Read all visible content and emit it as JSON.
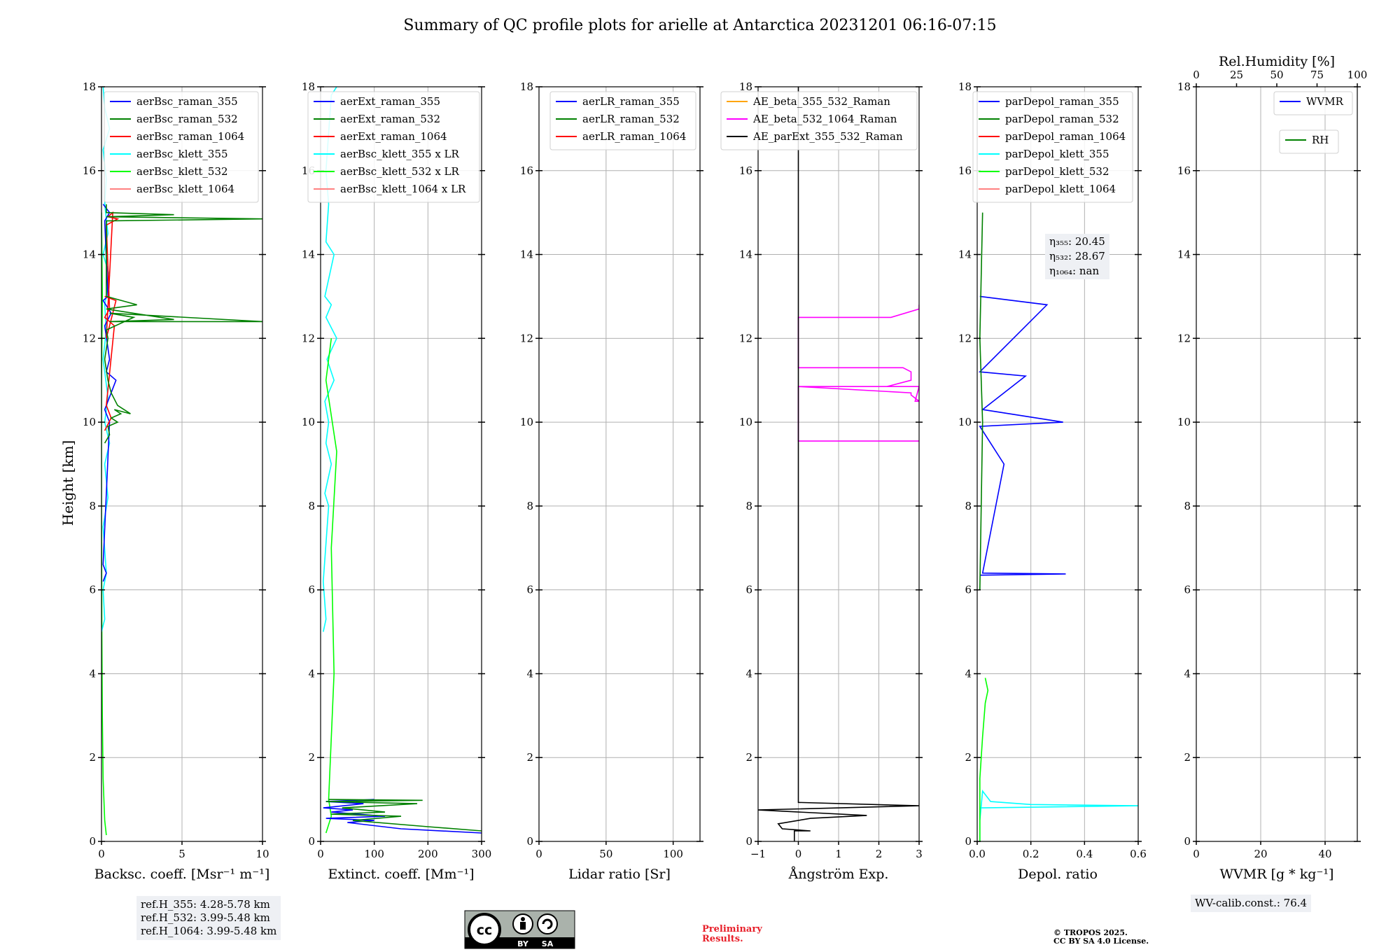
{
  "title": "Summary of QC profile plots for arielle at Antarctica 20231201 06:16-07:15",
  "ylabel": "Height [km]",
  "colors": {
    "blue": "#0000ff",
    "green": "#008000",
    "red": "#ff0000",
    "cyan": "#00ffff",
    "lime": "#00ff00",
    "salmon": "#ff8080",
    "orange": "#ffa500",
    "magenta": "#ff00ff",
    "black": "#000000"
  },
  "chart_data": [
    {
      "id": "bsc",
      "type": "line",
      "xlabel": "Backsc. coeff. [Msr⁻¹ m⁻¹]",
      "xlim": [
        0,
        10
      ],
      "ylim": [
        0,
        18
      ],
      "xticks": [
        0,
        5,
        10
      ],
      "xtick_labels": [
        "0",
        "5",
        "10"
      ],
      "yticks": [
        0,
        2,
        4,
        6,
        8,
        10,
        12,
        14,
        16,
        18
      ],
      "legend": [
        "aerBsc_raman_355",
        "aerBsc_raman_532",
        "aerBsc_raman_1064",
        "aerBsc_klett_355",
        "aerBsc_klett_532",
        "aerBsc_klett_1064"
      ],
      "legend_colors": [
        "blue",
        "green",
        "red",
        "cyan",
        "lime",
        "salmon"
      ],
      "series": [
        {
          "name": "aerBsc_klett_532",
          "color": "lime",
          "x": [
            0.3,
            0.2,
            0.1,
            0.05,
            0.02,
            0.0,
            0.0,
            0.05,
            0.0
          ],
          "y": [
            0.15,
            0.5,
            1.5,
            3,
            5,
            8,
            11,
            13,
            15
          ]
        },
        {
          "name": "aerBsc_klett_355",
          "color": "cyan",
          "x": [
            0.0,
            0.2,
            0.1,
            0.3,
            0.1,
            0.4,
            0.2,
            0.5,
            0.2,
            0.4,
            0.1,
            0.3,
            0.2,
            0.5,
            0.1,
            0.4,
            0.2,
            0.3,
            0.1,
            0.5,
            0.2,
            0.1
          ],
          "y": [
            5,
            5.3,
            6,
            6.4,
            7.5,
            8.2,
            9,
            9.5,
            10,
            10.6,
            11.5,
            12.2,
            12.8,
            13.5,
            14,
            14.5,
            15.2,
            15.8,
            16.5,
            17,
            17.5,
            18
          ]
        },
        {
          "name": "aerBsc_raman_355",
          "color": "blue",
          "x": [
            0.1,
            0.3,
            0.1,
            0.5,
            0.2,
            0.9,
            0.3,
            0.5,
            0.2,
            0.6,
            0.1,
            0.4,
            0.2,
            0.5,
            0.1
          ],
          "y": [
            6.2,
            6.4,
            6.6,
            10.0,
            10.3,
            11.0,
            11.2,
            11.5,
            12.3,
            12.6,
            12.9,
            13.0,
            14.8,
            15.0,
            15.2
          ]
        },
        {
          "name": "aerBsc_raman_1064",
          "color": "red",
          "x": [
            0.2,
            0.6,
            0.3,
            0.8,
            0.2,
            0.5,
            0.3,
            1.0,
            0.4,
            0.7,
            0.3,
            0.9,
            0.2
          ],
          "y": [
            9.8,
            10.1,
            10.4,
            12.3,
            12.5,
            12.7,
            14.7,
            14.85,
            14.9,
            15.0,
            12.0,
            12.9,
            13.0
          ]
        },
        {
          "name": "aerBsc_raman_532",
          "color": "green",
          "x": [
            0.2,
            0.5,
            0.4,
            1.0,
            0.6,
            1.2,
            0.8,
            1.8,
            1.0,
            0.6,
            0.4,
            0.2,
            0.4,
            0.3,
            2.0,
            0.5,
            10.0,
            0.5,
            4.5,
            0.3,
            2.2,
            0.3,
            0.3,
            10.0,
            0.3,
            4.5,
            0.3,
            0.3
          ],
          "y": [
            9.5,
            9.7,
            9.9,
            10.0,
            10.1,
            10.2,
            10.3,
            10.2,
            10.4,
            10.7,
            11.0,
            11.5,
            12.0,
            12.2,
            12.5,
            12.6,
            12.4,
            12.4,
            12.45,
            12.7,
            12.8,
            13.0,
            14.8,
            14.85,
            14.9,
            14.95,
            15.0,
            15.2
          ]
        }
      ],
      "notes": [
        "ref.H_355: 4.28-5.78 km",
        "ref.H_532: 3.99-5.48 km",
        "ref.H_1064: 3.99-5.48 km"
      ]
    },
    {
      "id": "ext",
      "type": "line",
      "xlabel": "Extinct. coeff. [Mm⁻¹]",
      "xlim": [
        0,
        300
      ],
      "ylim": [
        0,
        18
      ],
      "xticks": [
        0,
        100,
        200,
        300
      ],
      "xtick_labels": [
        "0",
        "100",
        "200",
        "300"
      ],
      "yticks": [
        0,
        2,
        4,
        6,
        8,
        10,
        12,
        14,
        16,
        18
      ],
      "legend": [
        "aerExt_raman_355",
        "aerExt_raman_532",
        "aerExt_raman_1064",
        "aerBsc_klett_355 x LR",
        "aerBsc_klett_532 x LR",
        "aerBsc_klett_1064 x LR"
      ],
      "legend_colors": [
        "blue",
        "green",
        "red",
        "cyan",
        "lime",
        "salmon"
      ],
      "series": [
        {
          "name": "aerBsc_klett_355 x LR",
          "color": "cyan",
          "x": [
            5,
            10,
            5,
            15,
            8,
            20,
            10,
            15,
            8,
            25,
            12,
            30,
            10,
            20,
            8,
            25,
            10,
            15,
            10,
            20,
            30
          ],
          "y": [
            5,
            5.3,
            6.2,
            8,
            8.3,
            9,
            9.5,
            10,
            10.5,
            11,
            11.5,
            12,
            12.5,
            12.8,
            13,
            14,
            14.3,
            15.2,
            16,
            17.8,
            18
          ]
        },
        {
          "name": "aerBsc_klett_532 x LR",
          "color": "lime",
          "x": [
            10,
            20,
            15,
            25,
            20,
            30,
            10,
            20
          ],
          "y": [
            0.2,
            0.6,
            1.0,
            4,
            7,
            9.3,
            11,
            12
          ]
        },
        {
          "name": "aerExt_raman_355",
          "color": "blue",
          "x": [
            300,
            150,
            50,
            100,
            10,
            120,
            20,
            60,
            5,
            80,
            10,
            100
          ],
          "y": [
            0.2,
            0.3,
            0.45,
            0.5,
            0.55,
            0.6,
            0.7,
            0.75,
            0.8,
            0.9,
            0.95,
            1.0
          ]
        },
        {
          "name": "aerExt_raman_532",
          "color": "green",
          "x": [
            300,
            200,
            60,
            150,
            20,
            120,
            40,
            180,
            10,
            190,
            15
          ],
          "y": [
            0.25,
            0.35,
            0.5,
            0.6,
            0.65,
            0.7,
            0.8,
            0.9,
            0.95,
            0.98,
            1.0
          ]
        }
      ]
    },
    {
      "id": "lr",
      "type": "line",
      "xlabel": "Lidar ratio [Sr]",
      "xlim": [
        0,
        120
      ],
      "ylim": [
        0,
        18
      ],
      "xticks": [
        0,
        50,
        100
      ],
      "xtick_labels": [
        "0",
        "50",
        "100"
      ],
      "yticks": [
        0,
        2,
        4,
        6,
        8,
        10,
        12,
        14,
        16,
        18
      ],
      "legend": [
        "aerLR_raman_355",
        "aerLR_raman_532",
        "aerLR_raman_1064"
      ],
      "legend_colors": [
        "blue",
        "green",
        "red"
      ],
      "series": []
    },
    {
      "id": "ae",
      "type": "line",
      "xlabel": "Ångström Exp.",
      "xlim": [
        -1,
        3
      ],
      "ylim": [
        0,
        18
      ],
      "xticks": [
        -1,
        0,
        1,
        2,
        3
      ],
      "xtick_labels": [
        "−1",
        "0",
        "1",
        "2",
        "3"
      ],
      "yticks": [
        0,
        2,
        4,
        6,
        8,
        10,
        12,
        14,
        16,
        18
      ],
      "legend": [
        "AE_beta_355_532_Raman",
        "AE_beta_532_1064_Raman",
        "AE_parExt_355_532_Raman"
      ],
      "legend_colors": [
        "orange",
        "magenta",
        "black"
      ],
      "series": [
        {
          "name": "AE_beta_532_1064_Raman",
          "color": "magenta",
          "x": [
            3,
            0,
            0,
            2.8,
            2.8,
            3,
            2.9,
            3,
            0,
            0,
            2.2,
            2.8,
            2.8,
            2.6,
            2.2,
            0,
            0,
            2.3,
            3,
            3
          ],
          "y": [
            9.55,
            9.55,
            10.85,
            10.7,
            10.65,
            10.5,
            10.5,
            10.85,
            10.85,
            10.85,
            10.85,
            11.0,
            11.2,
            11.3,
            11.3,
            11.3,
            12.5,
            12.5,
            12.7,
            12.8
          ]
        },
        {
          "name": "AE_parExt_355_532_Raman",
          "color": "black",
          "x": [
            0,
            0,
            3,
            -1,
            1.7,
            0.3,
            -0.5,
            -0.4,
            0.3,
            0.3,
            -0.1,
            -0.1
          ],
          "y": [
            18,
            0.93,
            0.85,
            0.75,
            0.62,
            0.55,
            0.42,
            0.3,
            0.25,
            0.25,
            0.25,
            0.0
          ]
        }
      ]
    },
    {
      "id": "pdr",
      "type": "line",
      "xlabel": "Depol. ratio",
      "xlim": [
        0.0,
        0.6
      ],
      "ylim": [
        0,
        18
      ],
      "xticks": [
        0.0,
        0.2,
        0.4,
        0.6
      ],
      "xtick_labels": [
        "0.0",
        "0.2",
        "0.4",
        "0.6"
      ],
      "yticks": [
        0,
        2,
        4,
        6,
        8,
        10,
        12,
        14,
        16,
        18
      ],
      "legend": [
        "parDepol_raman_355",
        "parDepol_raman_532",
        "parDepol_raman_1064",
        "parDepol_klett_355",
        "parDepol_klett_532",
        "parDepol_klett_1064"
      ],
      "legend_colors": [
        "blue",
        "green",
        "red",
        "cyan",
        "lime",
        "salmon"
      ],
      "series": [
        {
          "name": "parDepol_klett_355",
          "color": "cyan",
          "x": [
            0.01,
            0.01,
            0.02,
            0.05,
            0.2,
            0.6,
            0.02,
            0.01
          ],
          "y": [
            0,
            0.5,
            1.2,
            0.95,
            0.88,
            0.85,
            0.8,
            0.8
          ]
        },
        {
          "name": "parDepol_klett_532",
          "color": "lime",
          "x": [
            0.01,
            0.01,
            0.02,
            0.03,
            0.04,
            0.03
          ],
          "y": [
            0,
            1.5,
            2.5,
            3.3,
            3.6,
            3.9
          ]
        },
        {
          "name": "parDepol_raman_355",
          "color": "blue",
          "x": [
            0.01,
            0.33,
            0.02,
            0.1,
            0.01,
            0.32,
            0.02,
            0.18,
            0.01,
            0.26,
            0.01
          ],
          "y": [
            6.35,
            6.38,
            6.4,
            9.0,
            9.9,
            10.0,
            10.3,
            11.1,
            11.2,
            12.8,
            13.0
          ]
        },
        {
          "name": "parDepol_raman_532",
          "color": "green",
          "x": [
            0.01,
            0.02,
            0.01,
            0.02
          ],
          "y": [
            6.0,
            10.0,
            12.0,
            15.0
          ]
        }
      ],
      "notes": [
        "η₃₅₅: 20.45",
        "η₅₃₂: 28.67",
        "η₁₀₆₄: nan"
      ]
    },
    {
      "id": "wv",
      "type": "line",
      "xlabel": "WVMR [g * kg⁻¹]",
      "xlim": [
        0,
        50
      ],
      "ylim": [
        0,
        18
      ],
      "xticks": [
        0,
        20,
        40
      ],
      "xtick_labels": [
        "0",
        "20",
        "40"
      ],
      "yticks": [
        0,
        2,
        4,
        6,
        8,
        10,
        12,
        14,
        16,
        18
      ],
      "top_xlabel": "Rel.Humidity [%]",
      "top_xlim": [
        0,
        100
      ],
      "top_xticks": [
        0,
        25,
        50,
        75,
        100
      ],
      "top_xtick_labels": [
        "0",
        "25",
        "50",
        "75",
        "100"
      ],
      "legend": [
        "WVMR"
      ],
      "legend_colors": [
        "blue"
      ],
      "legend2": [
        "RH"
      ],
      "legend2_colors": [
        "green"
      ],
      "series": [],
      "notes": [
        "WV-calib.const.: 76.4"
      ]
    }
  ],
  "license": {
    "line1": "© TROPOS 2025.",
    "line2": "CC BY SA 4.0 License.",
    "badge_by": "BY",
    "badge_sa": "SA"
  },
  "preliminary": {
    "line1": "Preliminary",
    "line2": "Results."
  }
}
